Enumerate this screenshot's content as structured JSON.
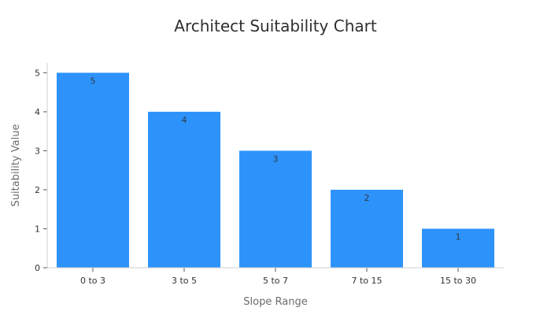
{
  "chart_data": {
    "type": "bar",
    "title": "Architect Suitability Chart",
    "xlabel": "Slope Range",
    "ylabel": "Suitability Value",
    "categories": [
      "0 to 3",
      "3 to 5",
      "5 to 7",
      "7 to 15",
      "15 to 30"
    ],
    "values": [
      5,
      4,
      3,
      2,
      1
    ],
    "ylim": [
      0,
      5.25
    ],
    "yticks": [
      "0",
      "1",
      "2",
      "3",
      "4",
      "5"
    ],
    "grid": false,
    "legend": "none",
    "bar_color": "#2d93fb",
    "data_labels": [
      "5",
      "4",
      "3",
      "2",
      "1"
    ]
  }
}
